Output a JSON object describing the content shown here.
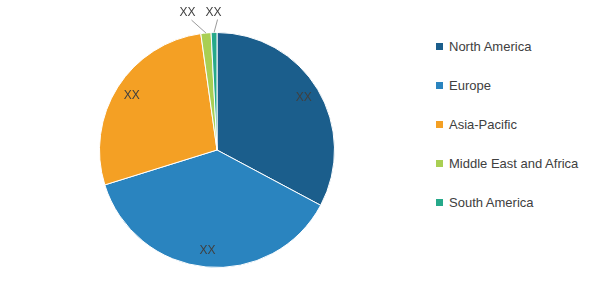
{
  "chart_data": {
    "type": "pie",
    "categories": [
      "North America",
      "Europe",
      "Asia-Pacific",
      "Middle East and Africa",
      "South America"
    ],
    "values": [
      32.8,
      37.4,
      27.6,
      1.4,
      0.8
    ],
    "value_labels": [
      "XX",
      "XX",
      "XX",
      "XX",
      "XX"
    ],
    "colors": [
      "#1b5e8c",
      "#2a84bf",
      "#f4a024",
      "#a9cf53",
      "#26a98a"
    ],
    "data_labels": true,
    "legend": "right"
  }
}
